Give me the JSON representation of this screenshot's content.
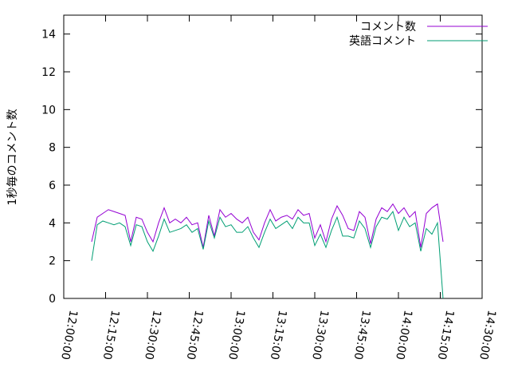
{
  "chart_data": {
    "type": "line",
    "ylabel": "1秒毎のコメント数",
    "x": [
      "12:10:00",
      "12:12:00",
      "12:14:00",
      "12:16:00",
      "12:18:00",
      "12:20:00",
      "12:22:00",
      "12:24:00",
      "12:26:00",
      "12:28:00",
      "12:30:00",
      "12:32:00",
      "12:34:00",
      "12:36:00",
      "12:38:00",
      "12:40:00",
      "12:42:00",
      "12:44:00",
      "12:46:00",
      "12:48:00",
      "12:50:00",
      "12:52:00",
      "12:54:00",
      "12:56:00",
      "12:58:00",
      "13:00:00",
      "13:02:00",
      "13:04:00",
      "13:06:00",
      "13:08:00",
      "13:10:00",
      "13:12:00",
      "13:14:00",
      "13:16:00",
      "13:18:00",
      "13:20:00",
      "13:22:00",
      "13:24:00",
      "13:26:00",
      "13:28:00",
      "13:30:00",
      "13:32:00",
      "13:34:00",
      "13:36:00",
      "13:38:00",
      "13:40:00",
      "13:42:00",
      "13:44:00",
      "13:46:00",
      "13:48:00",
      "13:50:00",
      "13:52:00",
      "13:54:00",
      "13:56:00",
      "13:58:00",
      "14:00:00",
      "14:02:00",
      "14:04:00",
      "14:06:00",
      "14:08:00",
      "14:10:00",
      "14:12:00",
      "14:14:00",
      "14:16:00"
    ],
    "series": [
      {
        "name": "コメント数",
        "color": "#9400d3",
        "values": [
          3.0,
          4.3,
          4.5,
          4.7,
          4.6,
          4.5,
          4.4,
          3.0,
          4.3,
          4.2,
          3.5,
          3.0,
          4.0,
          4.8,
          4.0,
          4.2,
          4.0,
          4.3,
          3.9,
          4.0,
          2.7,
          4.4,
          3.3,
          4.7,
          4.3,
          4.5,
          4.2,
          4.0,
          4.3,
          3.5,
          3.1,
          4.0,
          4.7,
          4.1,
          4.3,
          4.4,
          4.2,
          4.7,
          4.4,
          4.5,
          3.2,
          3.9,
          3.0,
          4.2,
          4.9,
          4.4,
          3.7,
          3.6,
          4.6,
          4.3,
          2.9,
          4.2,
          4.8,
          4.6,
          5.0,
          4.5,
          4.8,
          4.3,
          4.6,
          2.7,
          4.5,
          4.8,
          5.0,
          3.0
        ]
      },
      {
        "name": "英語コメント",
        "color": "#009e73",
        "values": [
          2.0,
          3.9,
          4.1,
          4.0,
          3.9,
          4.0,
          3.8,
          2.8,
          3.9,
          3.8,
          3.0,
          2.5,
          3.3,
          4.2,
          3.5,
          3.6,
          3.7,
          3.9,
          3.5,
          3.7,
          2.6,
          4.1,
          3.2,
          4.3,
          3.8,
          3.9,
          3.5,
          3.5,
          3.8,
          3.2,
          2.7,
          3.5,
          4.2,
          3.7,
          3.9,
          4.1,
          3.7,
          4.3,
          4.0,
          4.0,
          2.8,
          3.4,
          2.7,
          3.6,
          4.3,
          3.3,
          3.3,
          3.2,
          4.1,
          3.7,
          2.7,
          3.8,
          4.3,
          4.2,
          4.6,
          3.6,
          4.3,
          3.8,
          4.0,
          2.5,
          3.7,
          3.4,
          4.0,
          0.0
        ]
      }
    ],
    "xlim": [
      "12:00:00",
      "14:30:00"
    ],
    "xticks": [
      "12:00:00",
      "12:15:00",
      "12:30:00",
      "12:45:00",
      "13:00:00",
      "13:15:00",
      "13:30:00",
      "13:45:00",
      "14:00:00",
      "14:15:00",
      "14:30:00"
    ],
    "ylim": [
      0,
      15
    ],
    "yticks": [
      0,
      2,
      4,
      6,
      8,
      10,
      12,
      14
    ],
    "legend": "top-right"
  }
}
